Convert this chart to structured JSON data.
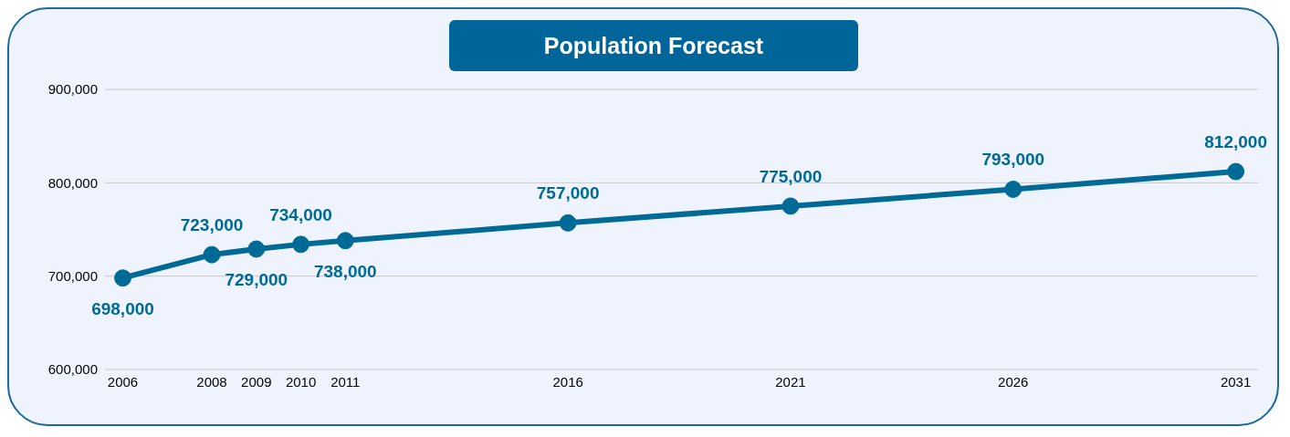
{
  "chart_data": {
    "type": "line",
    "title": "Population Forecast",
    "x": [
      2006,
      2008,
      2009,
      2010,
      2011,
      2016,
      2021,
      2026,
      2031
    ],
    "series": [
      {
        "color": "#006a96",
        "values": [
          698000,
          723000,
          729000,
          734000,
          738000,
          757000,
          775000,
          793000,
          812000
        ],
        "value_labels": [
          "698,000",
          "723,000",
          "729,000",
          "734,000",
          "738,000",
          "757,000",
          "775,000",
          "793,000",
          "812,000"
        ]
      }
    ],
    "xlim": [
      2005.6,
      2031.5
    ],
    "xticks": [
      2006,
      2008,
      2009,
      2010,
      2011,
      2016,
      2021,
      2026,
      2031
    ],
    "ylim": [
      600000,
      900000
    ],
    "yticks": [
      {
        "value": 600000,
        "label": "600,000"
      },
      {
        "value": 700000,
        "label": "700,000"
      },
      {
        "value": 800000,
        "label": "800,000"
      },
      {
        "value": 900000,
        "label": "900,000"
      }
    ],
    "grid": "y",
    "marker": "circle"
  }
}
